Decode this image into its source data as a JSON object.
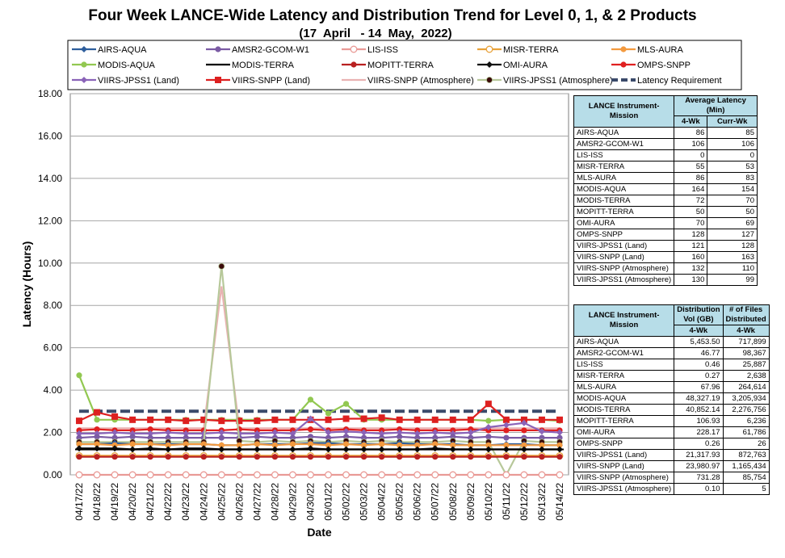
{
  "chart_data": {
    "type": "line",
    "title": "Four Week LANCE-Wide Latency and Distribution Trend for Level 0, 1, & 2 Products",
    "subtitle": "(17  April   - 14  May,  2022)",
    "xlabel": "Date",
    "ylabel": "Latency (Hours)",
    "ylim": [
      0,
      18
    ],
    "yticks": [
      "0.00",
      "2.00",
      "4.00",
      "6.00",
      "8.00",
      "10.00",
      "12.00",
      "14.00",
      "16.00",
      "18.00"
    ],
    "grid": true,
    "legend_position": "top",
    "x": [
      "04/17/22",
      "04/18/22",
      "04/19/22",
      "04/20/22",
      "04/21/22",
      "04/22/22",
      "04/23/22",
      "04/24/22",
      "04/25/22",
      "04/26/22",
      "04/27/22",
      "04/28/22",
      "04/29/22",
      "04/30/22",
      "05/01/22",
      "05/02/22",
      "05/03/22",
      "05/04/22",
      "05/05/22",
      "05/06/22",
      "05/07/22",
      "05/08/22",
      "05/09/22",
      "05/10/22",
      "05/11/22",
      "05/12/22",
      "05/13/22",
      "05/14/22"
    ],
    "series": [
      {
        "name": "AIRS-AQUA",
        "color": "#2e5e9c",
        "marker": "diamond",
        "values": [
          1.45,
          1.45,
          1.5,
          1.45,
          1.45,
          1.45,
          1.45,
          1.45,
          1.4,
          1.4,
          1.45,
          1.45,
          1.45,
          1.5,
          1.5,
          1.45,
          1.45,
          1.45,
          1.5,
          1.45,
          1.45,
          1.45,
          1.4,
          1.4,
          1.45,
          1.45,
          1.4,
          1.4
        ]
      },
      {
        "name": "AMSR2-GCOM-W1",
        "color": "#7b5ba4",
        "marker": "circle",
        "values": [
          1.75,
          1.8,
          1.75,
          1.8,
          1.75,
          1.75,
          1.75,
          1.75,
          1.75,
          1.75,
          1.8,
          1.75,
          1.75,
          1.8,
          1.75,
          1.8,
          1.75,
          1.75,
          1.8,
          1.75,
          1.75,
          1.8,
          1.75,
          1.8,
          1.75,
          1.75,
          1.75,
          1.75
        ]
      },
      {
        "name": "LIS-ISS",
        "color": "#e99a96",
        "marker": "circle-open",
        "values": [
          0,
          0,
          0,
          0,
          0,
          0,
          0,
          0,
          0,
          0,
          0,
          0,
          0,
          0,
          0,
          0,
          0,
          0,
          0,
          0,
          0,
          0,
          0,
          0,
          0,
          0,
          0,
          0
        ]
      },
      {
        "name": "MISR-TERRA",
        "color": "#e8a23a",
        "marker": "circle-open",
        "values": [
          0.9,
          0.9,
          0.9,
          0.9,
          0.9,
          0.9,
          0.9,
          0.9,
          0.9,
          0.9,
          0.9,
          0.9,
          0.9,
          0.9,
          0.9,
          0.9,
          0.9,
          0.9,
          0.9,
          0.9,
          0.9,
          0.9,
          0.9,
          0.9,
          0.9,
          0.9,
          0.9,
          0.9
        ]
      },
      {
        "name": "MLS-AURA",
        "color": "#f39a3f",
        "marker": "circle",
        "values": [
          1.45,
          1.45,
          1.4,
          1.45,
          1.45,
          1.4,
          1.45,
          1.45,
          1.4,
          1.4,
          1.45,
          1.4,
          1.45,
          1.45,
          1.4,
          1.45,
          1.4,
          1.45,
          1.4,
          1.4,
          1.45,
          1.4,
          1.4,
          1.4,
          1.4,
          1.4,
          1.4,
          1.4
        ]
      },
      {
        "name": "MODIS-AQUA",
        "color": "#92c851",
        "marker": "circle",
        "values": [
          4.7,
          2.6,
          2.6,
          2.6,
          2.6,
          2.6,
          2.6,
          2.6,
          2.6,
          2.6,
          2.6,
          2.6,
          2.6,
          3.55,
          2.9,
          3.35,
          2.6,
          2.6,
          2.6,
          2.6,
          2.6,
          2.6,
          2.6,
          2.55,
          2.6,
          2.6,
          2.6,
          2.55
        ]
      },
      {
        "name": "MODIS-TERRA",
        "color": "#000000",
        "marker": "dash",
        "values": [
          1.2,
          1.2,
          1.2,
          1.2,
          1.2,
          1.2,
          1.2,
          1.2,
          1.2,
          1.2,
          1.2,
          1.2,
          1.2,
          1.2,
          1.2,
          1.2,
          1.2,
          1.2,
          1.2,
          1.2,
          1.2,
          1.2,
          1.2,
          1.2,
          1.2,
          1.2,
          1.2,
          1.2
        ]
      },
      {
        "name": "MOPITT-TERRA",
        "color": "#b82020",
        "marker": "circle",
        "values": [
          0.85,
          0.85,
          0.85,
          0.85,
          0.85,
          0.85,
          0.85,
          0.85,
          0.85,
          0.85,
          0.85,
          0.85,
          0.85,
          0.85,
          0.85,
          0.85,
          0.85,
          0.85,
          0.85,
          0.85,
          0.85,
          0.85,
          0.85,
          0.85,
          0.85,
          0.85,
          0.85,
          0.85
        ]
      },
      {
        "name": "OMI-AURA",
        "color": "#111111",
        "marker": "diamond",
        "values": [
          1.25,
          1.25,
          1.25,
          1.2,
          1.25,
          1.2,
          1.25,
          1.25,
          1.2,
          1.2,
          1.2,
          1.2,
          1.2,
          1.25,
          1.2,
          1.2,
          1.2,
          1.2,
          1.2,
          1.2,
          1.25,
          1.2,
          1.2,
          1.2,
          1.2,
          1.2,
          1.2,
          1.2
        ]
      },
      {
        "name": "OMPS-SNPP",
        "color": "#e02020",
        "marker": "circle",
        "values": [
          2.1,
          2.15,
          2.1,
          2.1,
          2.15,
          2.1,
          2.1,
          2.1,
          2.1,
          2.15,
          2.1,
          2.1,
          2.1,
          2.15,
          2.1,
          2.15,
          2.1,
          2.1,
          2.15,
          2.1,
          2.1,
          2.1,
          2.15,
          2.1,
          2.1,
          2.1,
          2.1,
          2.1
        ]
      },
      {
        "name": "VIIRS-JPSS1 (Land)",
        "color": "#8a63b8",
        "marker": "diamond",
        "values": [
          1.95,
          1.95,
          2.0,
          1.95,
          1.95,
          2.0,
          1.95,
          1.95,
          2.0,
          1.95,
          1.95,
          2.0,
          1.95,
          2.65,
          2.0,
          2.05,
          2.0,
          1.95,
          2.0,
          1.95,
          2.0,
          1.95,
          2.0,
          2.25,
          2.35,
          2.45,
          2.05,
          2.0
        ]
      },
      {
        "name": "VIIRS-SNPP (Land)",
        "color": "#dd2020",
        "marker": "square",
        "values": [
          2.55,
          2.95,
          2.75,
          2.6,
          2.6,
          2.6,
          2.55,
          2.6,
          2.55,
          2.55,
          2.55,
          2.6,
          2.6,
          2.6,
          2.6,
          2.65,
          2.65,
          2.7,
          2.6,
          2.6,
          2.6,
          2.6,
          2.6,
          3.35,
          2.6,
          2.6,
          2.6,
          2.6
        ]
      },
      {
        "name": "VIIRS-SNPP (Atmosphere)",
        "color": "#e9b2b2",
        "marker": "none",
        "values": [
          2.2,
          2.2,
          2.2,
          2.2,
          2.2,
          2.2,
          2.2,
          2.2,
          8.9,
          2.2,
          2.2,
          2.2,
          2.2,
          2.2,
          2.2,
          2.2,
          2.2,
          2.2,
          2.2,
          2.2,
          2.2,
          2.2,
          2.2,
          2.2,
          2.2,
          2.2,
          2.2,
          2.2
        ]
      },
      {
        "name": "VIIRS-JPSS1 (Atmosphere)",
        "color": "#b7c89a",
        "marker": "circle-dark",
        "values": [
          1.55,
          1.55,
          1.55,
          1.55,
          1.55,
          1.55,
          1.55,
          1.55,
          9.85,
          1.6,
          1.55,
          1.6,
          1.55,
          1.6,
          1.55,
          1.6,
          1.55,
          1.6,
          1.55,
          1.55,
          1.55,
          1.6,
          1.55,
          1.55,
          0.0,
          1.6,
          1.55,
          1.55
        ]
      },
      {
        "name": "Latency Requirement",
        "color": "#3a4a6a",
        "marker": "dashed",
        "values": [
          3,
          3,
          3,
          3,
          3,
          3,
          3,
          3,
          3,
          3,
          3,
          3,
          3,
          3,
          3,
          3,
          3,
          3,
          3,
          3,
          3,
          3,
          3,
          3,
          3,
          3,
          3,
          3
        ]
      }
    ]
  },
  "latency_table": {
    "col1": "LANCE Instrument-Mission",
    "col2": "Average Latency (Min)",
    "sub_4wk": "4-Wk",
    "sub_curr": "Curr-Wk",
    "rows": [
      {
        "name": "AIRS-AQUA",
        "wk4": "86",
        "curr": "85"
      },
      {
        "name": "AMSR2-GCOM-W1",
        "wk4": "106",
        "curr": "106"
      },
      {
        "name": "LIS-ISS",
        "wk4": "0",
        "curr": "0"
      },
      {
        "name": "MISR-TERRA",
        "wk4": "55",
        "curr": "53"
      },
      {
        "name": "MLS-AURA",
        "wk4": "86",
        "curr": "83"
      },
      {
        "name": "MODIS-AQUA",
        "wk4": "164",
        "curr": "154"
      },
      {
        "name": "MODIS-TERRA",
        "wk4": "72",
        "curr": "70"
      },
      {
        "name": "MOPITT-TERRA",
        "wk4": "50",
        "curr": "50"
      },
      {
        "name": "OMI-AURA",
        "wk4": "70",
        "curr": "69"
      },
      {
        "name": "OMPS-SNPP",
        "wk4": "128",
        "curr": "127"
      },
      {
        "name": "VIIRS-JPSS1 (Land)",
        "wk4": "121",
        "curr": "128"
      },
      {
        "name": "VIIRS-SNPP (Land)",
        "wk4": "160",
        "curr": "163"
      },
      {
        "name": "VIIRS-SNPP (Atmosphere)",
        "wk4": "132",
        "curr": "110"
      },
      {
        "name": "VIIRS-JPSS1 (Atmosphere)",
        "wk4": "130",
        "curr": "99"
      }
    ]
  },
  "distribution_table": {
    "col1": "LANCE Instrument-Mission",
    "col2": "Distribution Vol (GB)",
    "col3": "# of Files Distributed",
    "sub_4wk": "4-Wk",
    "rows": [
      {
        "name": "AIRS-AQUA",
        "vol": "5,453.50",
        "files": "717,899"
      },
      {
        "name": "AMSR2-GCOM-W1",
        "vol": "46.77",
        "files": "98,367"
      },
      {
        "name": "LIS-ISS",
        "vol": "0.46",
        "files": "25,887"
      },
      {
        "name": "MISR-TERRA",
        "vol": "0.27",
        "files": "2,638"
      },
      {
        "name": "MLS-AURA",
        "vol": "67.96",
        "files": "264,614"
      },
      {
        "name": "MODIS-AQUA",
        "vol": "48,327.19",
        "files": "3,205,934"
      },
      {
        "name": "MODIS-TERRA",
        "vol": "40,852.14",
        "files": "2,276,756"
      },
      {
        "name": "MOPITT-TERRA",
        "vol": "106.93",
        "files": "6,236"
      },
      {
        "name": "OMI-AURA",
        "vol": "228.17",
        "files": "61,786"
      },
      {
        "name": "OMPS-SNPP",
        "vol": "0.26",
        "files": "26"
      },
      {
        "name": "VIIRS-JPSS1 (Land)",
        "vol": "21,317.93",
        "files": "872,763"
      },
      {
        "name": "VIIRS-SNPP (Land)",
        "vol": "23,980.97",
        "files": "1,165,434"
      },
      {
        "name": "VIIRS-SNPP (Atmosphere)",
        "vol": "731.28",
        "files": "85,754"
      },
      {
        "name": "VIIRS-JPSS1 (Atmosphere)",
        "vol": "0.10",
        "files": "5"
      }
    ]
  }
}
